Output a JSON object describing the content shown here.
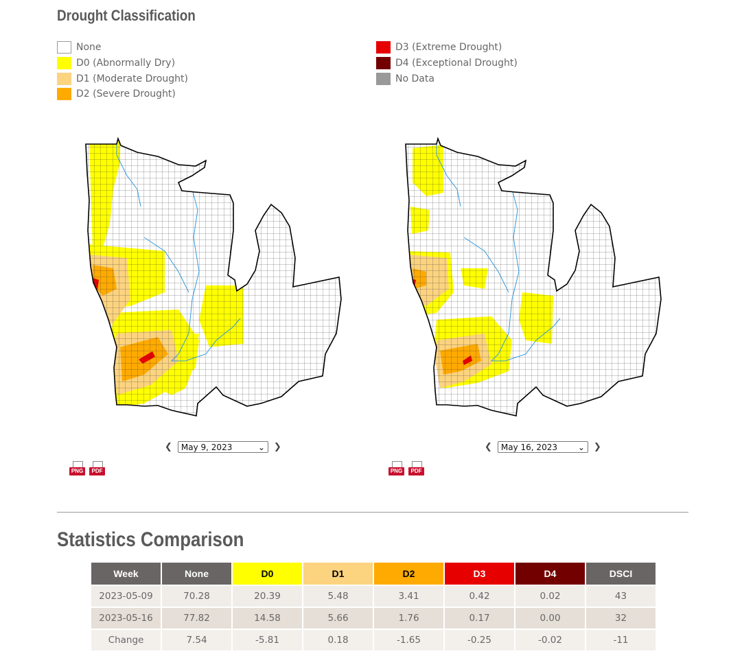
{
  "legend": {
    "title": "Drought Classification",
    "items": [
      {
        "label": "None",
        "color": "#ffffff"
      },
      {
        "label": "D0 (Abnormally Dry)",
        "color": "#ffff00"
      },
      {
        "label": "D1 (Moderate Drought)",
        "color": "#fcd37f"
      },
      {
        "label": "D2 (Severe Drought)",
        "color": "#ffaa00"
      },
      {
        "label": "D3 (Extreme Drought)",
        "color": "#e60000"
      },
      {
        "label": "D4 (Exceptional Drought)",
        "color": "#730000"
      },
      {
        "label": "No Data",
        "color": "#999999"
      }
    ]
  },
  "maps": [
    {
      "date": "May 9, 2023",
      "png_label": "PNG",
      "pdf_label": "PDF"
    },
    {
      "date": "May 16, 2023",
      "png_label": "PNG",
      "pdf_label": "PDF"
    }
  ],
  "stats": {
    "title": "Statistics Comparison",
    "columns": [
      "Week",
      "None",
      "D0",
      "D1",
      "D2",
      "D3",
      "D4",
      "DSCI"
    ],
    "header_colors": [
      "#6a6565",
      "#6a6565",
      "#ffff00",
      "#fcd37f",
      "#ffaa00",
      "#e60000",
      "#730000",
      "#6a6565"
    ],
    "header_text_colors": [
      "#ffffff",
      "#ffffff",
      "#000000",
      "#000000",
      "#000000",
      "#ffffff",
      "#ffffff",
      "#ffffff"
    ],
    "rows": [
      [
        "2023-05-09",
        "70.28",
        "20.39",
        "5.48",
        "3.41",
        "0.42",
        "0.02",
        "43"
      ],
      [
        "2023-05-16",
        "77.82",
        "14.58",
        "5.66",
        "1.76",
        "0.17",
        "0.00",
        "32"
      ],
      [
        "Change",
        "7.54",
        "-5.81",
        "0.18",
        "-1.65",
        "-0.25",
        "-0.02",
        "-11"
      ]
    ]
  }
}
